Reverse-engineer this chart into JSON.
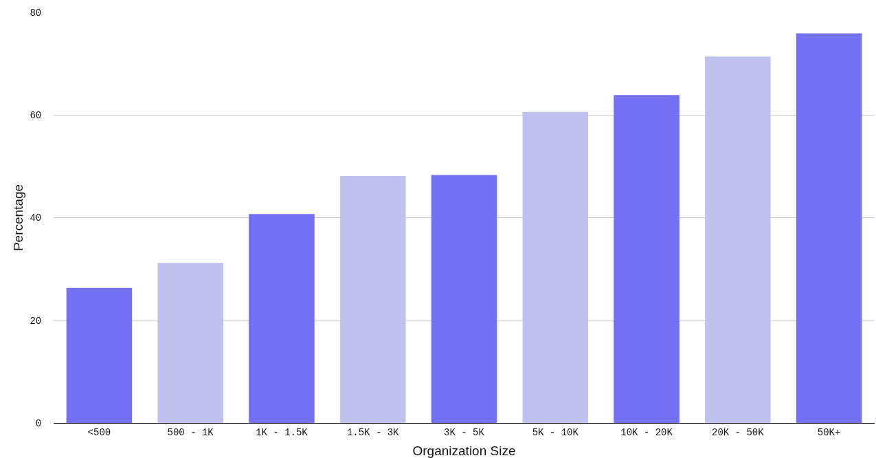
{
  "chart_data": {
    "type": "bar",
    "xlabel": "Organization Size",
    "ylabel": "Percentage",
    "categories": [
      "<500",
      "500 - 1K",
      "1K - 1.5K",
      "1.5K - 3K",
      "3K - 5K",
      "5K - 10K",
      "10K - 20K",
      "20K - 50K",
      "50K+"
    ],
    "values": [
      26.3,
      31.2,
      40.7,
      48.1,
      48.3,
      60.6,
      63.9,
      71.4,
      75.9
    ],
    "colors": [
      "#7470f3",
      "#c0c1ef",
      "#7470f3",
      "#c0c1ef",
      "#7470f3",
      "#c0c1ef",
      "#7470f3",
      "#c0c1ef",
      "#7470f3"
    ],
    "ylim": [
      0,
      80
    ],
    "yticks": [
      0,
      20,
      40,
      60,
      80
    ],
    "grid": "y"
  }
}
